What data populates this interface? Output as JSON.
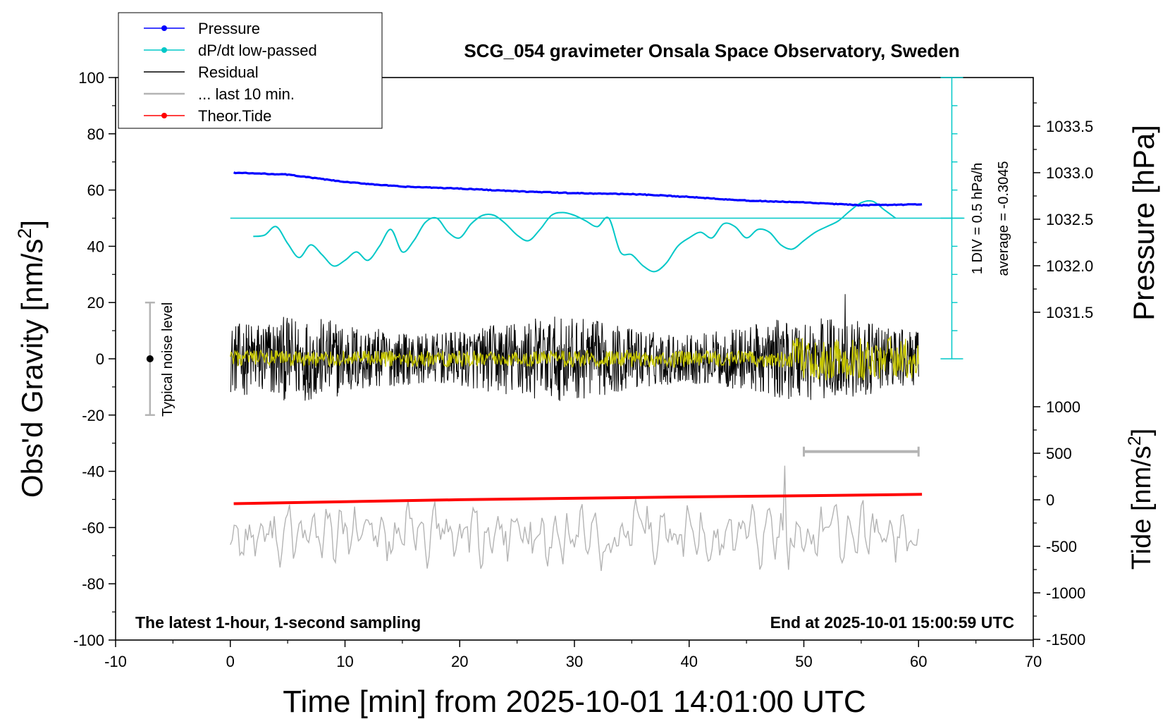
{
  "chart_data": {
    "type": "line",
    "title": "SCG_054 gravimeter Onsala Space Observatory, Sweden",
    "xlabel": "Time [min] from 2025-10-01 14:01:00 UTC",
    "ylabel_left": "Obs'd Gravity [nm/s",
    "ylabel_left_sup": "2",
    "ylabel_left_end": "]",
    "ylabel_right_pressure": "Pressure [hPa]",
    "ylabel_right_tide": "Tide [nm/s",
    "ylabel_right_tide_sup": "2",
    "ylabel_right_tide_end": "]",
    "xlim": [
      -10,
      70
    ],
    "ylim_left": [
      -100,
      100
    ],
    "x_ticks": [
      -10,
      0,
      10,
      20,
      30,
      40,
      50,
      60,
      70
    ],
    "y_ticks_left": [
      100,
      80,
      60,
      40,
      20,
      0,
      -20,
      -40,
      -60,
      -80,
      -100
    ],
    "pressure_ticks": [
      "1033.5",
      "1033.0",
      "1032.5",
      "1032.0",
      "1031.5"
    ],
    "pressure_tick_values": [
      1033.5,
      1033.0,
      1032.5,
      1032.0,
      1031.5
    ],
    "tide_ticks": [
      "1000",
      "500",
      "0",
      "-500",
      "-1000",
      "-1500"
    ],
    "tide_tick_values": [
      1000,
      500,
      0,
      -500,
      -1000,
      -1500
    ],
    "footer_left": "The latest 1-hour, 1-second sampling",
    "footer_right": "End at 2025-10-01 15:00:59 UTC",
    "noise_label": "Typical noise level",
    "dpdt_scale_label": "1 DIV = 0.5 hPa/h",
    "dpdt_average_label": "average = -0.3045",
    "legend": [
      {
        "label": "Pressure",
        "color": "#0000ff",
        "marker": true
      },
      {
        "label": "dP/dt low-passed",
        "color": "#00c8c8",
        "marker": true
      },
      {
        "label": "Residual",
        "color": "#000000",
        "marker": false
      },
      {
        "label": "... last 10 min.",
        "color": "#b4b4b4",
        "marker": false
      },
      {
        "label": "Theor.Tide",
        "color": "#ff0000",
        "marker": true
      }
    ],
    "series": [
      {
        "name": "Pressure",
        "color": "#0000ff",
        "axis": "pressure",
        "x": [
          0.3,
          5,
          10,
          15,
          20,
          25,
          30,
          35,
          40,
          45,
          50,
          55,
          60.3
        ],
        "y": [
          1033.0,
          1032.98,
          1032.9,
          1032.85,
          1032.83,
          1032.8,
          1032.78,
          1032.77,
          1032.74,
          1032.7,
          1032.68,
          1032.65,
          1032.66
        ]
      },
      {
        "name": "dP/dt low-passed",
        "color": "#00c8c8",
        "axis": "left",
        "x": [
          2,
          3,
          4,
          5,
          6,
          7,
          8,
          9,
          10,
          11,
          12,
          13,
          14,
          15,
          16,
          17,
          18,
          19,
          20,
          21,
          22,
          23,
          24,
          25,
          26,
          27,
          28,
          29,
          30,
          31,
          32,
          33,
          34,
          35,
          36,
          37,
          38,
          39,
          40,
          41,
          42,
          43,
          44,
          45,
          46,
          47,
          48,
          49,
          50,
          51,
          52,
          53,
          54,
          55,
          56,
          57,
          58
        ],
        "y": [
          43.5,
          44,
          47,
          41,
          36,
          40.5,
          37,
          33,
          35,
          38,
          35,
          40,
          46,
          38,
          42,
          48.5,
          50,
          45,
          43,
          48,
          51,
          51,
          48,
          44,
          42,
          46,
          51,
          52,
          51,
          49,
          47,
          50,
          38,
          37,
          33,
          31,
          34,
          40,
          43,
          45,
          43,
          48,
          47,
          43,
          46,
          45,
          40.5,
          39,
          42,
          45,
          47,
          49,
          52.5,
          55.5,
          56,
          53,
          50
        ]
      },
      {
        "name": "Residual",
        "color": "#000000",
        "axis": "left",
        "x_range": [
          0,
          60
        ],
        "amplitude": 12
      },
      {
        "name": "Residual low-passed",
        "color": "#c8c800",
        "axis": "left",
        "x_range": [
          0,
          60
        ],
        "amplitude": 3
      },
      {
        "name": "... last 10 min.",
        "color": "#b4b4b4",
        "axis": "left",
        "x_range": [
          0,
          60
        ],
        "center": -63,
        "amplitude": 12
      },
      {
        "name": "Theor.Tide",
        "color": "#ff0000",
        "axis": "left",
        "x": [
          0.3,
          10,
          20,
          30,
          40,
          50,
          60.3
        ],
        "y": [
          -51.5,
          -50.8,
          -50.1,
          -49.6,
          -49.1,
          -48.7,
          -48.2
        ]
      }
    ],
    "dpdt_reference_level": 50,
    "noise_level": {
      "x": -7,
      "center": 0,
      "range": [
        -20,
        20
      ]
    },
    "last10_bar": {
      "x": [
        50,
        60
      ],
      "y": -33
    },
    "grid": false,
    "legend_position": "top-left"
  }
}
